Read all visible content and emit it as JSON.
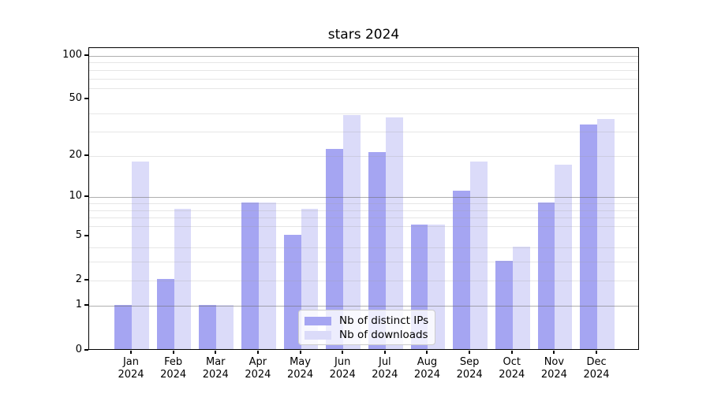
{
  "title": "stars 2024",
  "chart_data": {
    "type": "bar",
    "title": "stars 2024",
    "xlabel": "",
    "ylabel": "",
    "yscale": "log1p",
    "ylim": [
      0,
      113
    ],
    "yticks": [
      0,
      1,
      2,
      5,
      10,
      20,
      50,
      100
    ],
    "major_gridlines": [
      1,
      10,
      100
    ],
    "minor_gridlines": [
      2,
      3,
      4,
      6,
      7,
      8,
      9,
      20,
      30,
      40,
      60,
      70,
      80,
      90
    ],
    "grid": "on, drawn over bars",
    "legend_position": "inside bottom-center",
    "categories": [
      {
        "month": "Jan",
        "year": "2024"
      },
      {
        "month": "Feb",
        "year": "2024"
      },
      {
        "month": "Mar",
        "year": "2024"
      },
      {
        "month": "Apr",
        "year": "2024"
      },
      {
        "month": "May",
        "year": "2024"
      },
      {
        "month": "Jun",
        "year": "2024"
      },
      {
        "month": "Jul",
        "year": "2024"
      },
      {
        "month": "Aug",
        "year": "2024"
      },
      {
        "month": "Sep",
        "year": "2024"
      },
      {
        "month": "Oct",
        "year": "2024"
      },
      {
        "month": "Nov",
        "year": "2024"
      },
      {
        "month": "Dec",
        "year": "2024"
      }
    ],
    "series": [
      {
        "name": "Nb of distinct IPs",
        "color": "#a5a5f2",
        "values": [
          1,
          2,
          1,
          9,
          5,
          22,
          21,
          6,
          11,
          3,
          9,
          33
        ]
      },
      {
        "name": "Nb of downloads",
        "color": "#dbdbf9",
        "values": [
          18,
          8,
          1,
          9,
          8,
          38,
          37,
          6,
          18,
          4,
          17,
          36
        ]
      }
    ]
  }
}
